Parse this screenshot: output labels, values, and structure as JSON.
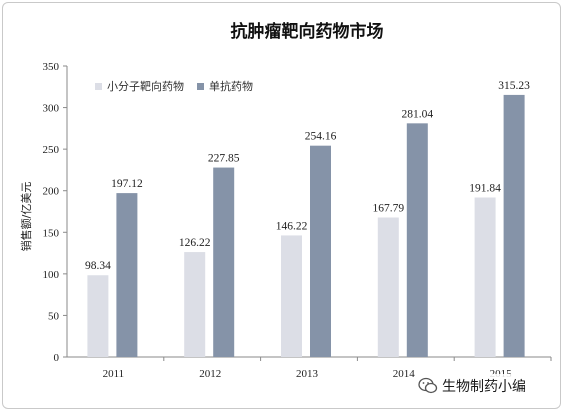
{
  "chart_data": {
    "type": "bar",
    "title": "抗肿瘤靶向药物市场",
    "xlabel": "",
    "ylabel": "销售额/亿美元",
    "ylim": [
      0,
      350
    ],
    "yticks": [
      0,
      50,
      100,
      150,
      200,
      250,
      300,
      350
    ],
    "categories": [
      "2011",
      "2012",
      "2013",
      "2014",
      "2015"
    ],
    "series": [
      {
        "name": "小分子靶向药物",
        "values": [
          98.34,
          126.22,
          146.22,
          167.79,
          191.84
        ],
        "color": "#dcdee6"
      },
      {
        "name": "单抗药物",
        "values": [
          197.12,
          227.85,
          254.16,
          281.04,
          315.23
        ],
        "color": "#8593a8"
      }
    ],
    "value_labels": [
      [
        "98.34",
        "126.22",
        "146.22",
        "167.79",
        "191.84"
      ],
      [
        "197.12",
        "227.85",
        "254.16",
        "281.04",
        "315.23"
      ]
    ],
    "legend_position": "top-left",
    "grid": false
  },
  "watermark": {
    "text": "生物制药小编",
    "icon": "wechat-icon"
  }
}
